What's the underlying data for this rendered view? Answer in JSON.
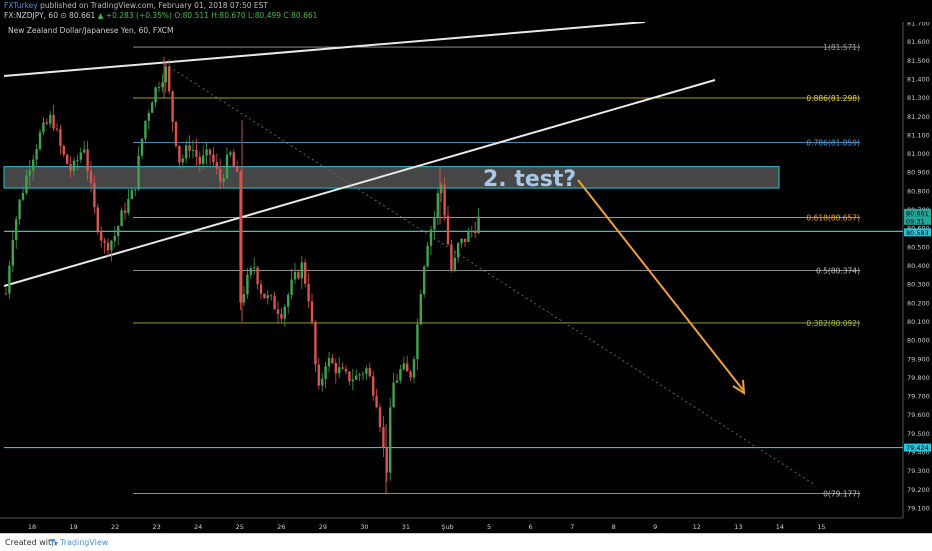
{
  "header": {
    "line1_user": "FXTurkey",
    "line1_rest": " published on TradingView.com, February 01, 2018 07:50 EST",
    "symbol": "FX:NZDJPY, 60",
    "last": "80.661",
    "change": "+0.283 (+0.35%)",
    "ohlc": "O:80.511 H:80.670 L:80.499 C:80.661"
  },
  "footer": {
    "created_with": "Created with",
    "brand": "TradingView"
  },
  "chart_data": {
    "type": "candlestick",
    "title": "New Zealand Dollar/Japanese Yen, 60, FXCM",
    "x_ticks": [
      "18",
      "19",
      "22",
      "23",
      "24",
      "25",
      "26",
      "29",
      "30",
      "31",
      "Şub",
      "5",
      "6",
      "7",
      "8",
      "9",
      "12",
      "13",
      "14",
      "15"
    ],
    "y_ticks": [
      "81.700",
      "81.600",
      "81.500",
      "81.400",
      "81.300",
      "81.200",
      "81.100",
      "81.000",
      "80.900",
      "80.800",
      "80.700",
      "80.600",
      "80.500",
      "80.400",
      "80.300",
      "80.200",
      "80.100",
      "80.000",
      "79.900",
      "79.800",
      "79.700",
      "79.600",
      "79.500",
      "79.400",
      "79.300",
      "79.200",
      "79.100"
    ],
    "ylim": [
      79.07,
      81.73
    ],
    "price_badges": [
      {
        "value": "80.661",
        "color": "#26a69a"
      },
      {
        "value": "09:31",
        "color": "#26a69a"
      },
      {
        "value": "80.583",
        "color": "#26c6da"
      },
      {
        "value": "79.424",
        "color": "#26c6da"
      }
    ],
    "fibonacci": [
      {
        "label": "1(81.571)",
        "value": 81.571,
        "color": "#9e9e9e"
      },
      {
        "label": "0.886(81.298)",
        "value": 81.298,
        "color": "#e0d23c"
      },
      {
        "label": "0.786(81.059)",
        "value": 81.059,
        "color": "#4a9fd6"
      },
      {
        "label": "0.618(80.657)",
        "value": 80.657,
        "color": "#f0a030"
      },
      {
        "label": "0.5(80.374)",
        "value": 80.374,
        "color": "#bdbdbd"
      },
      {
        "label": "0.382(80.092)",
        "value": 80.092,
        "color": "#a4b93a"
      },
      {
        "label": "0(79.177)",
        "value": 79.177,
        "color": "#bdbdbd"
      }
    ],
    "horizontal_levels": [
      {
        "value": 80.583,
        "color": "#26c6da"
      },
      {
        "value": 79.424,
        "color": "#26c6da"
      }
    ],
    "resistance_zone": [
      80.815,
      80.93
    ],
    "annotation": "2. test?",
    "colors": {
      "up": "#3fa34d",
      "down": "#d9534f",
      "arrow": "#f0a030"
    }
  }
}
